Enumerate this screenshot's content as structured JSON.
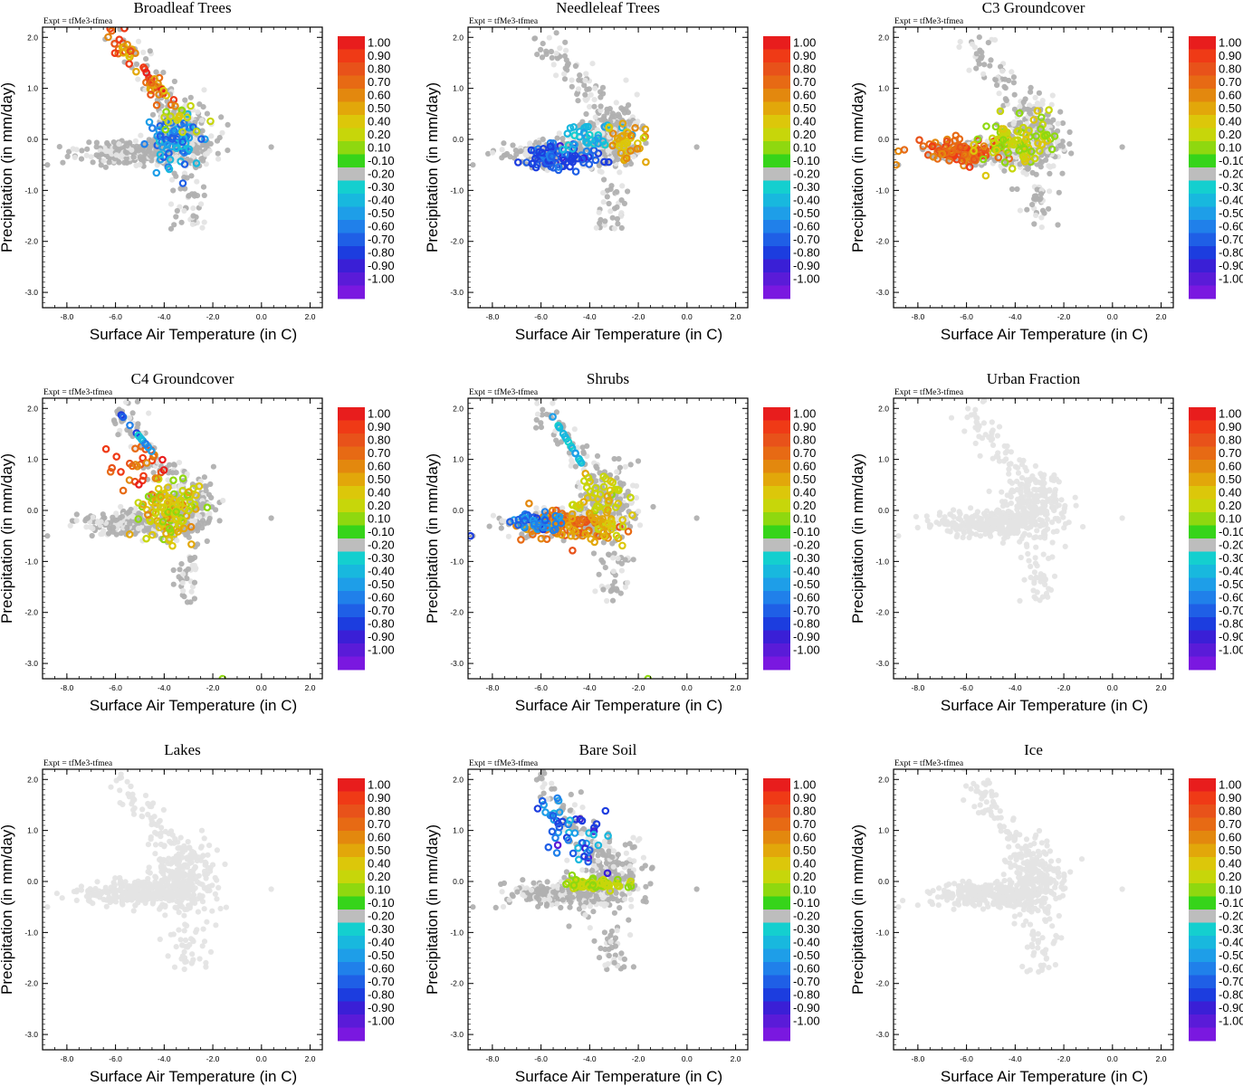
{
  "colorbar": {
    "labels": [
      "1.00",
      "0.90",
      "0.80",
      "0.70",
      "0.60",
      "0.50",
      "0.40",
      "0.20",
      "0.10",
      "-0.10",
      "-0.20",
      "-0.30",
      "-0.40",
      "-0.50",
      "-0.60",
      "-0.70",
      "-0.80",
      "-0.90",
      "-1.00"
    ],
    "colors": [
      "#e81d1d",
      "#ef3a16",
      "#e8521a",
      "#e76a14",
      "#e3880e",
      "#e2a70a",
      "#dcc70a",
      "#c7d60a",
      "#8fd80f",
      "#36d41a",
      "#bdbdbd",
      "#14cfcf",
      "#18b8de",
      "#1e9ee8",
      "#2080ea",
      "#1f5fe6",
      "#1c3ddf",
      "#3a1fd6",
      "#5a1bd8",
      "#7a18e0"
    ]
  },
  "chart_data": [
    {
      "type": "scatter",
      "title": "Broadleaf Trees",
      "expt": "Expt = tfMe3-tfmea",
      "xlabel": "Surface Air Temperature (in C)",
      "ylabel": "Precipitation (in mm/day)",
      "xlim": [
        -9,
        2.5
      ],
      "ylim": [
        -3.3,
        2.2
      ],
      "xticks": [
        "-8.0",
        "-6.0",
        "-4.0",
        "-2.0",
        "0.0",
        "2.0"
      ],
      "yticks": [
        "2.0",
        "1.0",
        "0.0",
        "-1.0",
        "-2.0",
        "-3.0"
      ],
      "style": "broadleaf",
      "seed": 11
    },
    {
      "type": "scatter",
      "title": "Needleleaf Trees",
      "expt": "Expt = tfMe3-tfmea",
      "xlabel": "Surface Air Temperature (in C)",
      "ylabel": "Precipitation (in mm/day)",
      "xlim": [
        -9,
        2.5
      ],
      "ylim": [
        -3.3,
        2.2
      ],
      "xticks": [
        "-8.0",
        "-6.0",
        "-4.0",
        "-2.0",
        "0.0",
        "2.0"
      ],
      "yticks": [
        "2.0",
        "1.0",
        "0.0",
        "-1.0",
        "-2.0",
        "-3.0"
      ],
      "style": "needleleaf",
      "seed": 23
    },
    {
      "type": "scatter",
      "title": "C3 Groundcover",
      "expt": "Expt = tfMe3-tfmea",
      "xlabel": "Surface Air Temperature (in C)",
      "ylabel": "Precipitation (in mm/day)",
      "xlim": [
        -9,
        2.5
      ],
      "ylim": [
        -3.3,
        2.2
      ],
      "xticks": [
        "-8.0",
        "-6.0",
        "-4.0",
        "-2.0",
        "0.0",
        "2.0"
      ],
      "yticks": [
        "2.0",
        "1.0",
        "0.0",
        "-1.0",
        "-2.0",
        "-3.0"
      ],
      "style": "c3",
      "seed": 37
    },
    {
      "type": "scatter",
      "title": "C4 Groundcover",
      "expt": "Expt = tfMe3-tfmea",
      "xlabel": "Surface Air Temperature (in C)",
      "ylabel": "Precipitation (in mm/day)",
      "xlim": [
        -9,
        2.5
      ],
      "ylim": [
        -3.3,
        2.2
      ],
      "xticks": [
        "-8.0",
        "-6.0",
        "-4.0",
        "-2.0",
        "0.0",
        "2.0"
      ],
      "yticks": [
        "2.0",
        "1.0",
        "0.0",
        "-1.0",
        "-2.0",
        "-3.0"
      ],
      "style": "c4",
      "seed": 41
    },
    {
      "type": "scatter",
      "title": "Shrubs",
      "expt": "Expt = tfMe3-tfmea",
      "xlabel": "Surface Air Temperature (in C)",
      "ylabel": "Precipitation (in mm/day)",
      "xlim": [
        -9,
        2.5
      ],
      "ylim": [
        -3.3,
        2.2
      ],
      "xticks": [
        "-8.0",
        "-6.0",
        "-4.0",
        "-2.0",
        "0.0",
        "2.0"
      ],
      "yticks": [
        "2.0",
        "1.0",
        "0.0",
        "-1.0",
        "-2.0",
        "-3.0"
      ],
      "style": "shrubs",
      "seed": 53
    },
    {
      "type": "scatter",
      "title": "Urban Fraction",
      "expt": "Expt = tfMe3-tfmea",
      "xlabel": "Surface Air Temperature (in C)",
      "ylabel": "Precipitation (in mm/day)",
      "xlim": [
        -9,
        2.5
      ],
      "ylim": [
        -3.3,
        2.2
      ],
      "xticks": [
        "-8.0",
        "-6.0",
        "-4.0",
        "-2.0",
        "0.0",
        "2.0"
      ],
      "yticks": [
        "2.0",
        "1.0",
        "0.0",
        "-1.0",
        "-2.0",
        "-3.0"
      ],
      "style": "empty",
      "seed": 61
    },
    {
      "type": "scatter",
      "title": "Lakes",
      "expt": "Expt = tfMe3-tfmea",
      "xlabel": "Surface Air Temperature (in C)",
      "ylabel": "Precipitation (in mm/day)",
      "xlim": [
        -9,
        2.5
      ],
      "ylim": [
        -3.3,
        2.2
      ],
      "xticks": [
        "-8.0",
        "-6.0",
        "-4.0",
        "-2.0",
        "0.0",
        "2.0"
      ],
      "yticks": [
        "2.0",
        "1.0",
        "0.0",
        "-1.0",
        "-2.0",
        "-3.0"
      ],
      "style": "empty",
      "seed": 67
    },
    {
      "type": "scatter",
      "title": "Bare Soil",
      "expt": "Expt = tfMe3-tfmea",
      "xlabel": "Surface Air Temperature (in C)",
      "ylabel": "Precipitation (in mm/day)",
      "xlim": [
        -9,
        2.5
      ],
      "ylim": [
        -3.3,
        2.2
      ],
      "xticks": [
        "-8.0",
        "-6.0",
        "-4.0",
        "-2.0",
        "0.0",
        "2.0"
      ],
      "yticks": [
        "2.0",
        "1.0",
        "0.0",
        "-1.0",
        "-2.0",
        "-3.0"
      ],
      "style": "baresoil",
      "seed": 71
    },
    {
      "type": "scatter",
      "title": "Ice",
      "expt": "Expt = tfMe3-tfmea",
      "xlabel": "Surface Air Temperature (in C)",
      "ylabel": "Precipitation (in mm/day)",
      "xlim": [
        -9,
        2.5
      ],
      "ylim": [
        -3.3,
        2.2
      ],
      "xticks": [
        "-8.0",
        "-6.0",
        "-4.0",
        "-2.0",
        "0.0",
        "2.0"
      ],
      "yticks": [
        "2.0",
        "1.0",
        "0.0",
        "-1.0",
        "-2.0",
        "-3.0"
      ],
      "style": "empty",
      "seed": 79
    }
  ]
}
